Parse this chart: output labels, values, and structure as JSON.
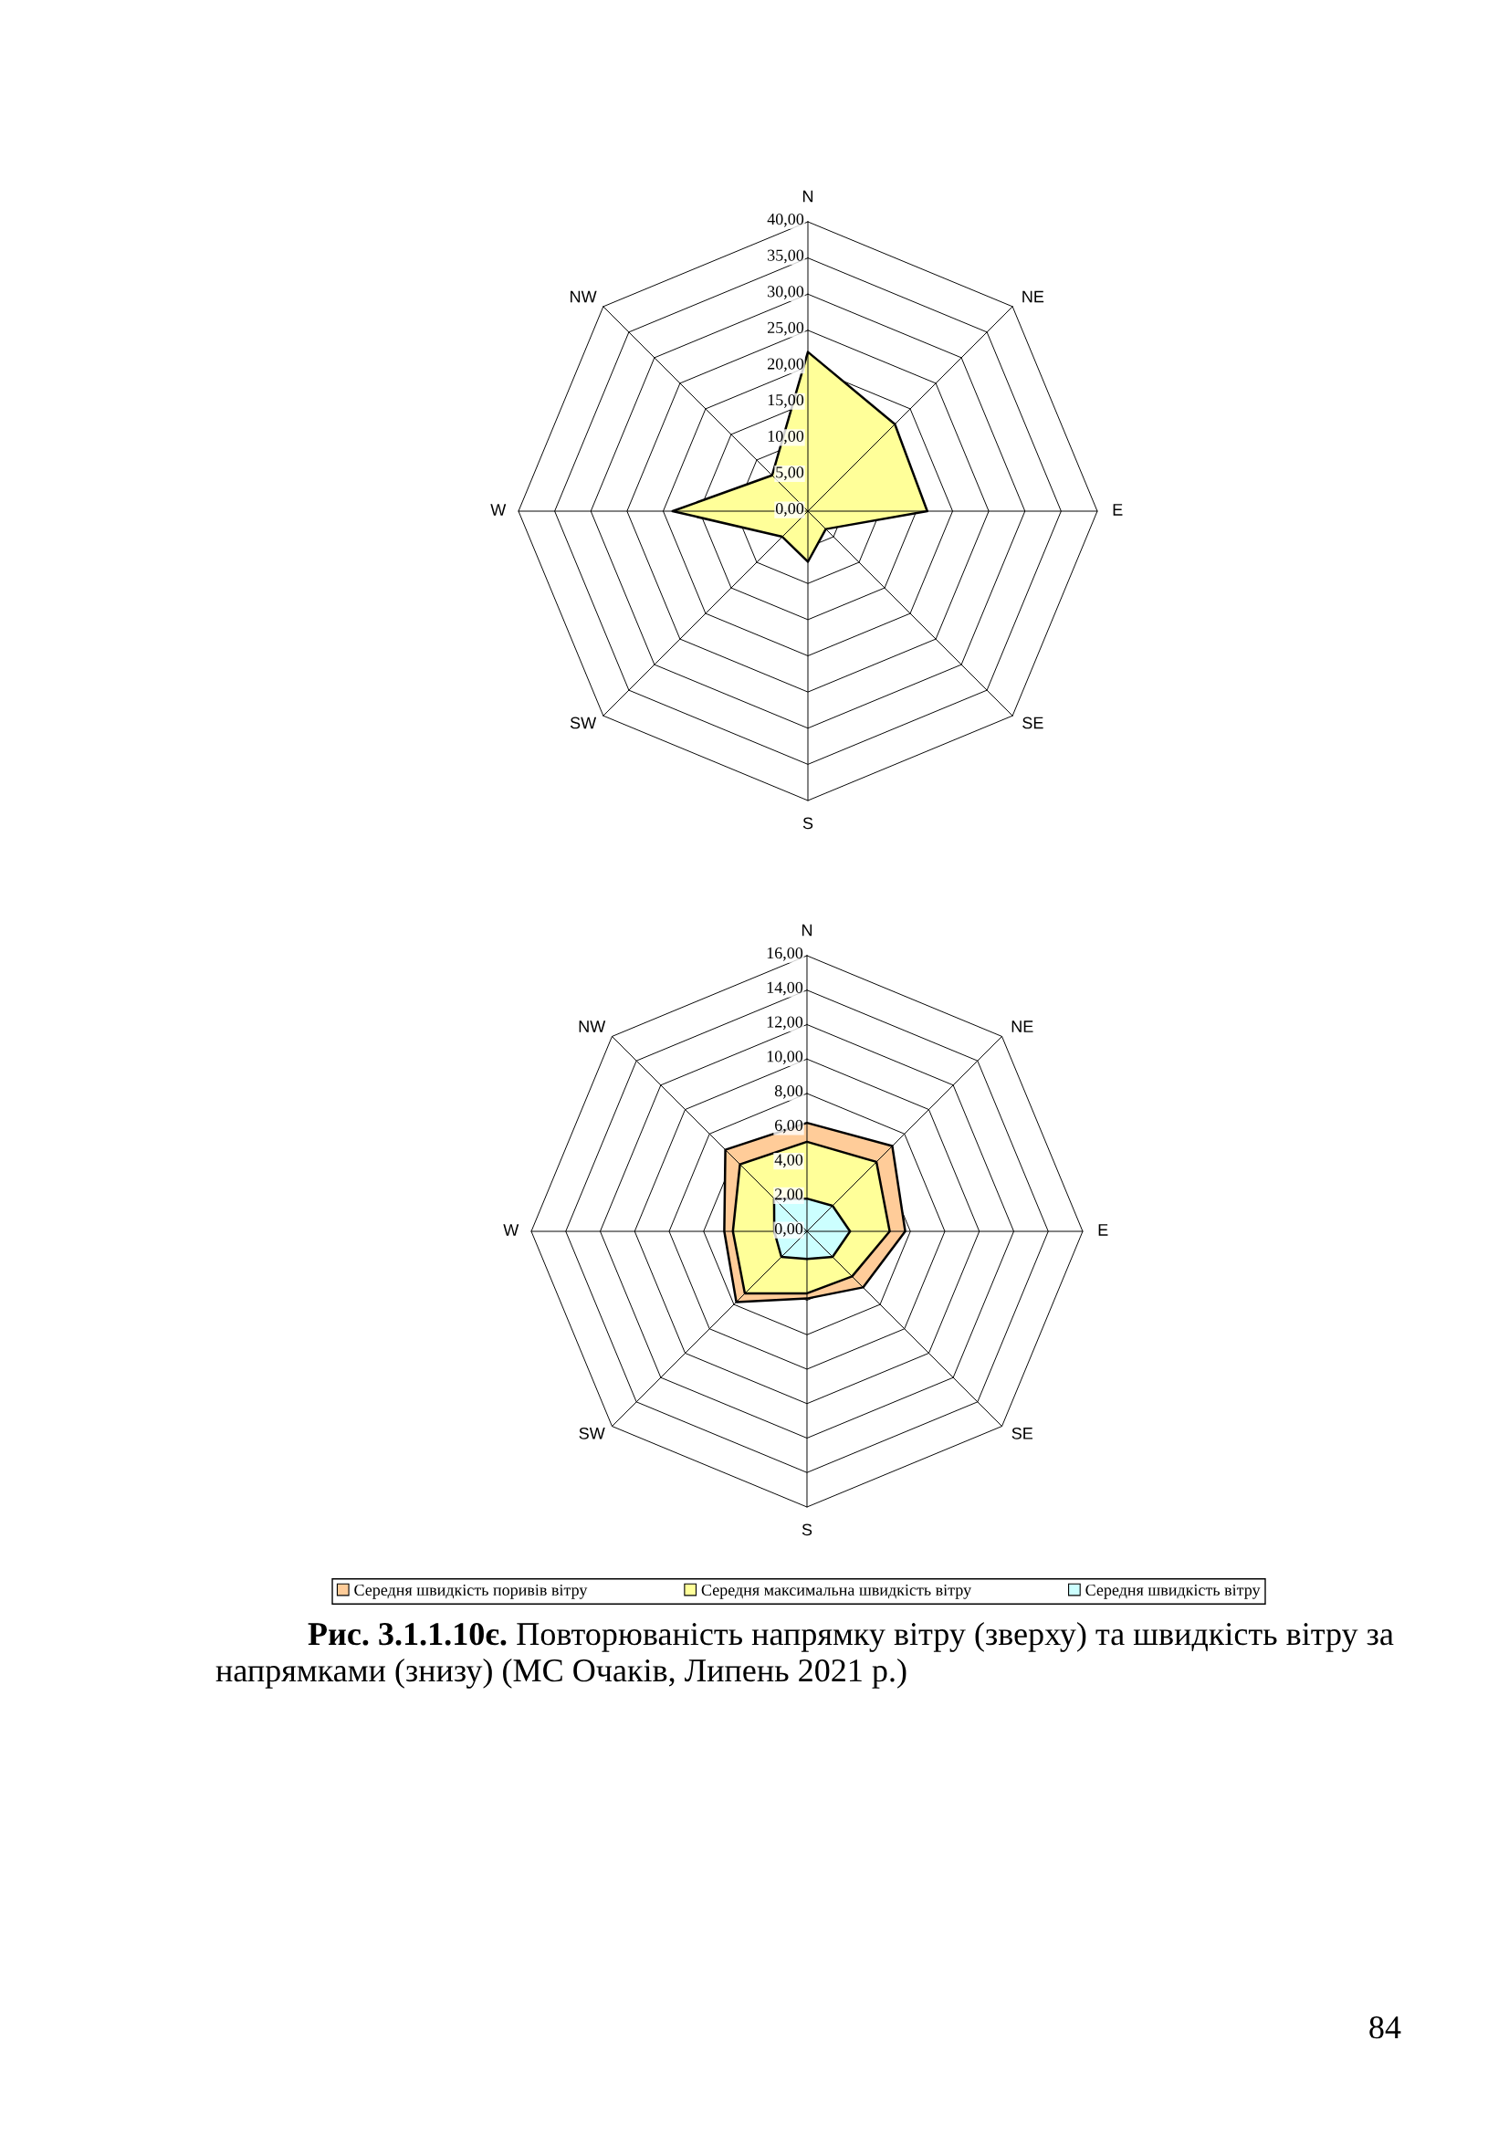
{
  "chart_data": [
    {
      "type": "radar",
      "categories": [
        "N",
        "NE",
        "E",
        "SE",
        "S",
        "SW",
        "W",
        "NW"
      ],
      "series": [
        {
          "color": "#ffff99",
          "values": [
            22,
            17,
            16.5,
            3.5,
            7,
            5,
            18.7,
            7
          ]
        }
      ],
      "ylim": [
        0,
        40
      ],
      "yticks": [
        {
          "value": 0,
          "label": "0,00"
        },
        {
          "value": 5,
          "label": "5,00"
        },
        {
          "value": 10,
          "label": "10,00"
        },
        {
          "value": 15,
          "label": "15,00"
        },
        {
          "value": 20,
          "label": "20,00"
        },
        {
          "value": 25,
          "label": "25,00"
        },
        {
          "value": 30,
          "label": "30,00"
        },
        {
          "value": 35,
          "label": "35,00"
        },
        {
          "value": 40,
          "label": "40,00"
        }
      ],
      "grid": true
    },
    {
      "type": "radar",
      "categories": [
        "N",
        "NE",
        "E",
        "SE",
        "S",
        "SW",
        "W",
        "NW"
      ],
      "series": [
        {
          "name": "Середня швидкість поривів вітру",
          "color": "#ffcc99",
          "values": [
            6.3,
            7.0,
            5.7,
            4.6,
            3.9,
            5.8,
            4.8,
            6.7
          ]
        },
        {
          "name": "Середня максимальна швидкість вітру",
          "color": "#ffff99",
          "values": [
            5.2,
            5.7,
            4.8,
            3.7,
            3.6,
            5.1,
            4.3,
            5.5
          ]
        },
        {
          "name": "Середня швидкість вітру",
          "color": "#ccffff",
          "values": [
            1.9,
            2.1,
            2.5,
            2.1,
            1.6,
            2.1,
            1.9,
            2.7
          ]
        }
      ],
      "ylim": [
        0,
        16
      ],
      "yticks": [
        {
          "value": 0,
          "label": "0,00"
        },
        {
          "value": 2,
          "label": "2,00"
        },
        {
          "value": 4,
          "label": "4,00"
        },
        {
          "value": 6,
          "label": "6,00"
        },
        {
          "value": 8,
          "label": "8,00"
        },
        {
          "value": 10,
          "label": "10,00"
        },
        {
          "value": 12,
          "label": "12,00"
        },
        {
          "value": 14,
          "label": "14,00"
        },
        {
          "value": 16,
          "label": "16,00"
        }
      ],
      "grid": true,
      "legend": "bottom",
      "annotations": [
        "Рис. 3.1.1.10є.",
        "Повторюваність напрямку вітру (зверху) та швидкість вітру за напрямками (знизу) (МС Очаків, Липень 2021 р.)",
        "84"
      ]
    }
  ]
}
